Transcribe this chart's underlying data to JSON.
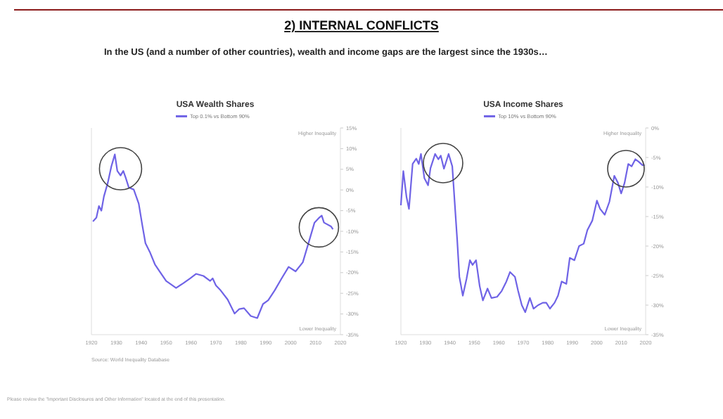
{
  "chart_data": [
    {
      "type": "line",
      "title": "USA Wealth Shares",
      "annotations": [
        "2) INTERNAL CONFLICTS",
        "In the US (and a number of other countries), wealth and income gaps are the largest since the 1930s…",
        "Higher Inequality",
        "Lower Inequality",
        "Source: World Inequality Database",
        "Please review the \"Important Disclosures and Other Information\" located at the end of this presentation."
      ],
      "legend": "top",
      "xlim": [
        1920,
        2020
      ],
      "xticks": [
        1920,
        1930,
        1940,
        1950,
        1960,
        1970,
        1980,
        1990,
        2000,
        2010,
        2020
      ],
      "ylim": [
        -35,
        15
      ],
      "yticks": [
        {
          "value": 15,
          "label": "15%"
        },
        {
          "value": 10,
          "label": "10%"
        },
        {
          "value": 5,
          "label": "5%"
        },
        {
          "value": 0,
          "label": "0%"
        },
        {
          "value": -5,
          "label": "-5%"
        },
        {
          "value": -10,
          "label": "-10%"
        },
        {
          "value": -15,
          "label": "-15%"
        },
        {
          "value": -20,
          "label": "-20%"
        },
        {
          "value": -25,
          "label": "-25%"
        },
        {
          "value": -30,
          "label": "-30%"
        },
        {
          "value": -35,
          "label": "-35%"
        }
      ],
      "x": [
        1920.6,
        1922,
        1923,
        1924,
        1925,
        1926.6,
        1928,
        1929.4,
        1930.4,
        1931.7,
        1932.8,
        1933.8,
        1935,
        1937,
        1939,
        1940.4,
        1941.7,
        1943.6,
        1945.5,
        1947.4,
        1950,
        1954,
        1956.8,
        1959.6,
        1962,
        1965,
        1967.7,
        1968.7,
        1970,
        1971.9,
        1974.7,
        1977.5,
        1979.4,
        1981.3,
        1984,
        1986.6,
        1988.9,
        1991,
        1993.6,
        1996.4,
        1999.2,
        2002,
        2004.9,
        2007.7,
        2009.6,
        2011.5,
        2012.5,
        2013.4,
        2016.2,
        2017
      ],
      "series": [
        {
          "name": "Top 0.1% vs Bottom 90%",
          "color": "#6f63e6",
          "values": [
            -7.6,
            -6.7,
            -3.9,
            -5,
            -1.6,
            1.8,
            5.7,
            8.6,
            4.6,
            3.5,
            4.6,
            2.9,
            0.6,
            0.1,
            -3.3,
            -8.4,
            -12.9,
            -15.2,
            -18,
            -19.7,
            -22,
            -23.7,
            -22.6,
            -21.4,
            -20.3,
            -20.8,
            -22,
            -21.4,
            -23.1,
            -24.3,
            -26.5,
            -29.9,
            -28.8,
            -28.6,
            -30.5,
            -31,
            -27.6,
            -26.7,
            -24.3,
            -21.4,
            -18.6,
            -19.7,
            -17.5,
            -11.8,
            -7.9,
            -6.7,
            -6.2,
            -7.9,
            -8.8,
            -9.5
          ]
        }
      ]
    },
    {
      "type": "line",
      "title": "USA Income Shares",
      "annotations": [
        "Higher Inequality",
        "Lower Inequality"
      ],
      "legend": "top",
      "xlim": [
        1920,
        2020
      ],
      "xticks": [
        1920,
        1930,
        1940,
        1950,
        1960,
        1970,
        1980,
        1990,
        2000,
        2010,
        2020
      ],
      "ylim": [
        -35,
        0
      ],
      "yticks": [
        {
          "value": 0,
          "label": "0%"
        },
        {
          "value": -5,
          "label": "-5%"
        },
        {
          "value": -10,
          "label": "-10%"
        },
        {
          "value": -15,
          "label": "-15%"
        },
        {
          "value": -20,
          "label": "-20%"
        },
        {
          "value": -25,
          "label": "-25%"
        },
        {
          "value": -30,
          "label": "-30%"
        },
        {
          "value": -35,
          "label": "-35%"
        }
      ],
      "x": [
        1920,
        1921,
        1922.3,
        1923.3,
        1924.8,
        1926.3,
        1927.3,
        1928.2,
        1929.6,
        1931.1,
        1932.1,
        1934,
        1935.3,
        1936.3,
        1937.6,
        1939.5,
        1941,
        1943,
        1943.9,
        1945.3,
        1946.8,
        1948.2,
        1949.3,
        1950.7,
        1952.2,
        1953.5,
        1955.4,
        1957,
        1959.3,
        1961.2,
        1963.1,
        1964.6,
        1966.6,
        1967.9,
        1969.4,
        1970.8,
        1972.7,
        1974.2,
        1976.1,
        1978,
        1979.4,
        1980.9,
        1982.8,
        1984.2,
        1985.7,
        1987.6,
        1989,
        1990.9,
        1992.8,
        1994.7,
        1996.2,
        1998.2,
        2000.1,
        2001.4,
        2003.3,
        2005.2,
        2007.2,
        2008.7,
        2010,
        2011.4,
        2012.9,
        2014.3,
        2015.8,
        2017.1,
        2018.7,
        2019.6
      ],
      "series": [
        {
          "name": "Top 10% vs Bottom 90%",
          "color": "#6f63e6",
          "values": [
            -13.1,
            -7.3,
            -11.7,
            -13.7,
            -6.1,
            -5.2,
            -6.1,
            -4.4,
            -8.5,
            -9.7,
            -6.8,
            -4.4,
            -5.3,
            -4.7,
            -6.9,
            -4.4,
            -6.5,
            -18.9,
            -25.2,
            -28.4,
            -25.6,
            -22.4,
            -23.2,
            -22.4,
            -26.8,
            -29.2,
            -27.2,
            -28.8,
            -28.6,
            -27.6,
            -26,
            -24.4,
            -25.2,
            -27.6,
            -30,
            -31.2,
            -28.8,
            -30.6,
            -30,
            -29.6,
            -29.6,
            -30.6,
            -29.6,
            -28.4,
            -26,
            -26.4,
            -22,
            -22.4,
            -20,
            -19.6,
            -17.3,
            -15.7,
            -12.3,
            -13.7,
            -14.7,
            -12.5,
            -8.1,
            -9.3,
            -11.1,
            -9.3,
            -6.1,
            -6.5,
            -5.3,
            -5.7,
            -6.3,
            -6.3
          ]
        }
      ]
    }
  ]
}
